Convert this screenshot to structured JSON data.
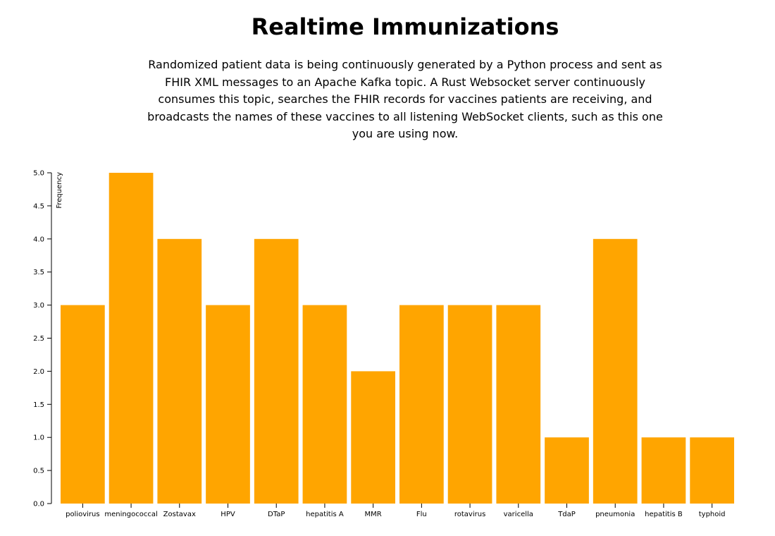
{
  "header": {
    "title": "Realtime Immunizations",
    "description": "Randomized patient data is being continuously generated by a Python process and sent as FHIR XML messages to an Apache Kafka topic. A Rust Websocket server continuously consumes this topic, searches the FHIR records for vaccines patients are receiving, and broadcasts the names of these vaccines to all listening WebSocket clients, such as this one you are using now."
  },
  "chart_data": {
    "type": "bar",
    "title": "",
    "xlabel": "",
    "ylabel": "Frequency",
    "categories": [
      "poliovirus",
      "meningococcal",
      "Zostavax",
      "HPV",
      "DTaP",
      "hepatitis A",
      "MMR",
      "Flu",
      "rotavirus",
      "varicella",
      "TdaP",
      "pneumonia",
      "hepatitis B",
      "typhoid"
    ],
    "values": [
      3,
      5,
      4,
      3,
      4,
      3,
      2,
      3,
      3,
      3,
      1,
      4,
      1,
      1
    ],
    "ylim": [
      0,
      5
    ],
    "yticks": [
      "0.0",
      "0.5",
      "1.0",
      "1.5",
      "2.0",
      "2.5",
      "3.0",
      "3.5",
      "4.0",
      "4.5",
      "5.0"
    ],
    "grid": false,
    "legend": "none",
    "bar_color": "#FFA500"
  }
}
